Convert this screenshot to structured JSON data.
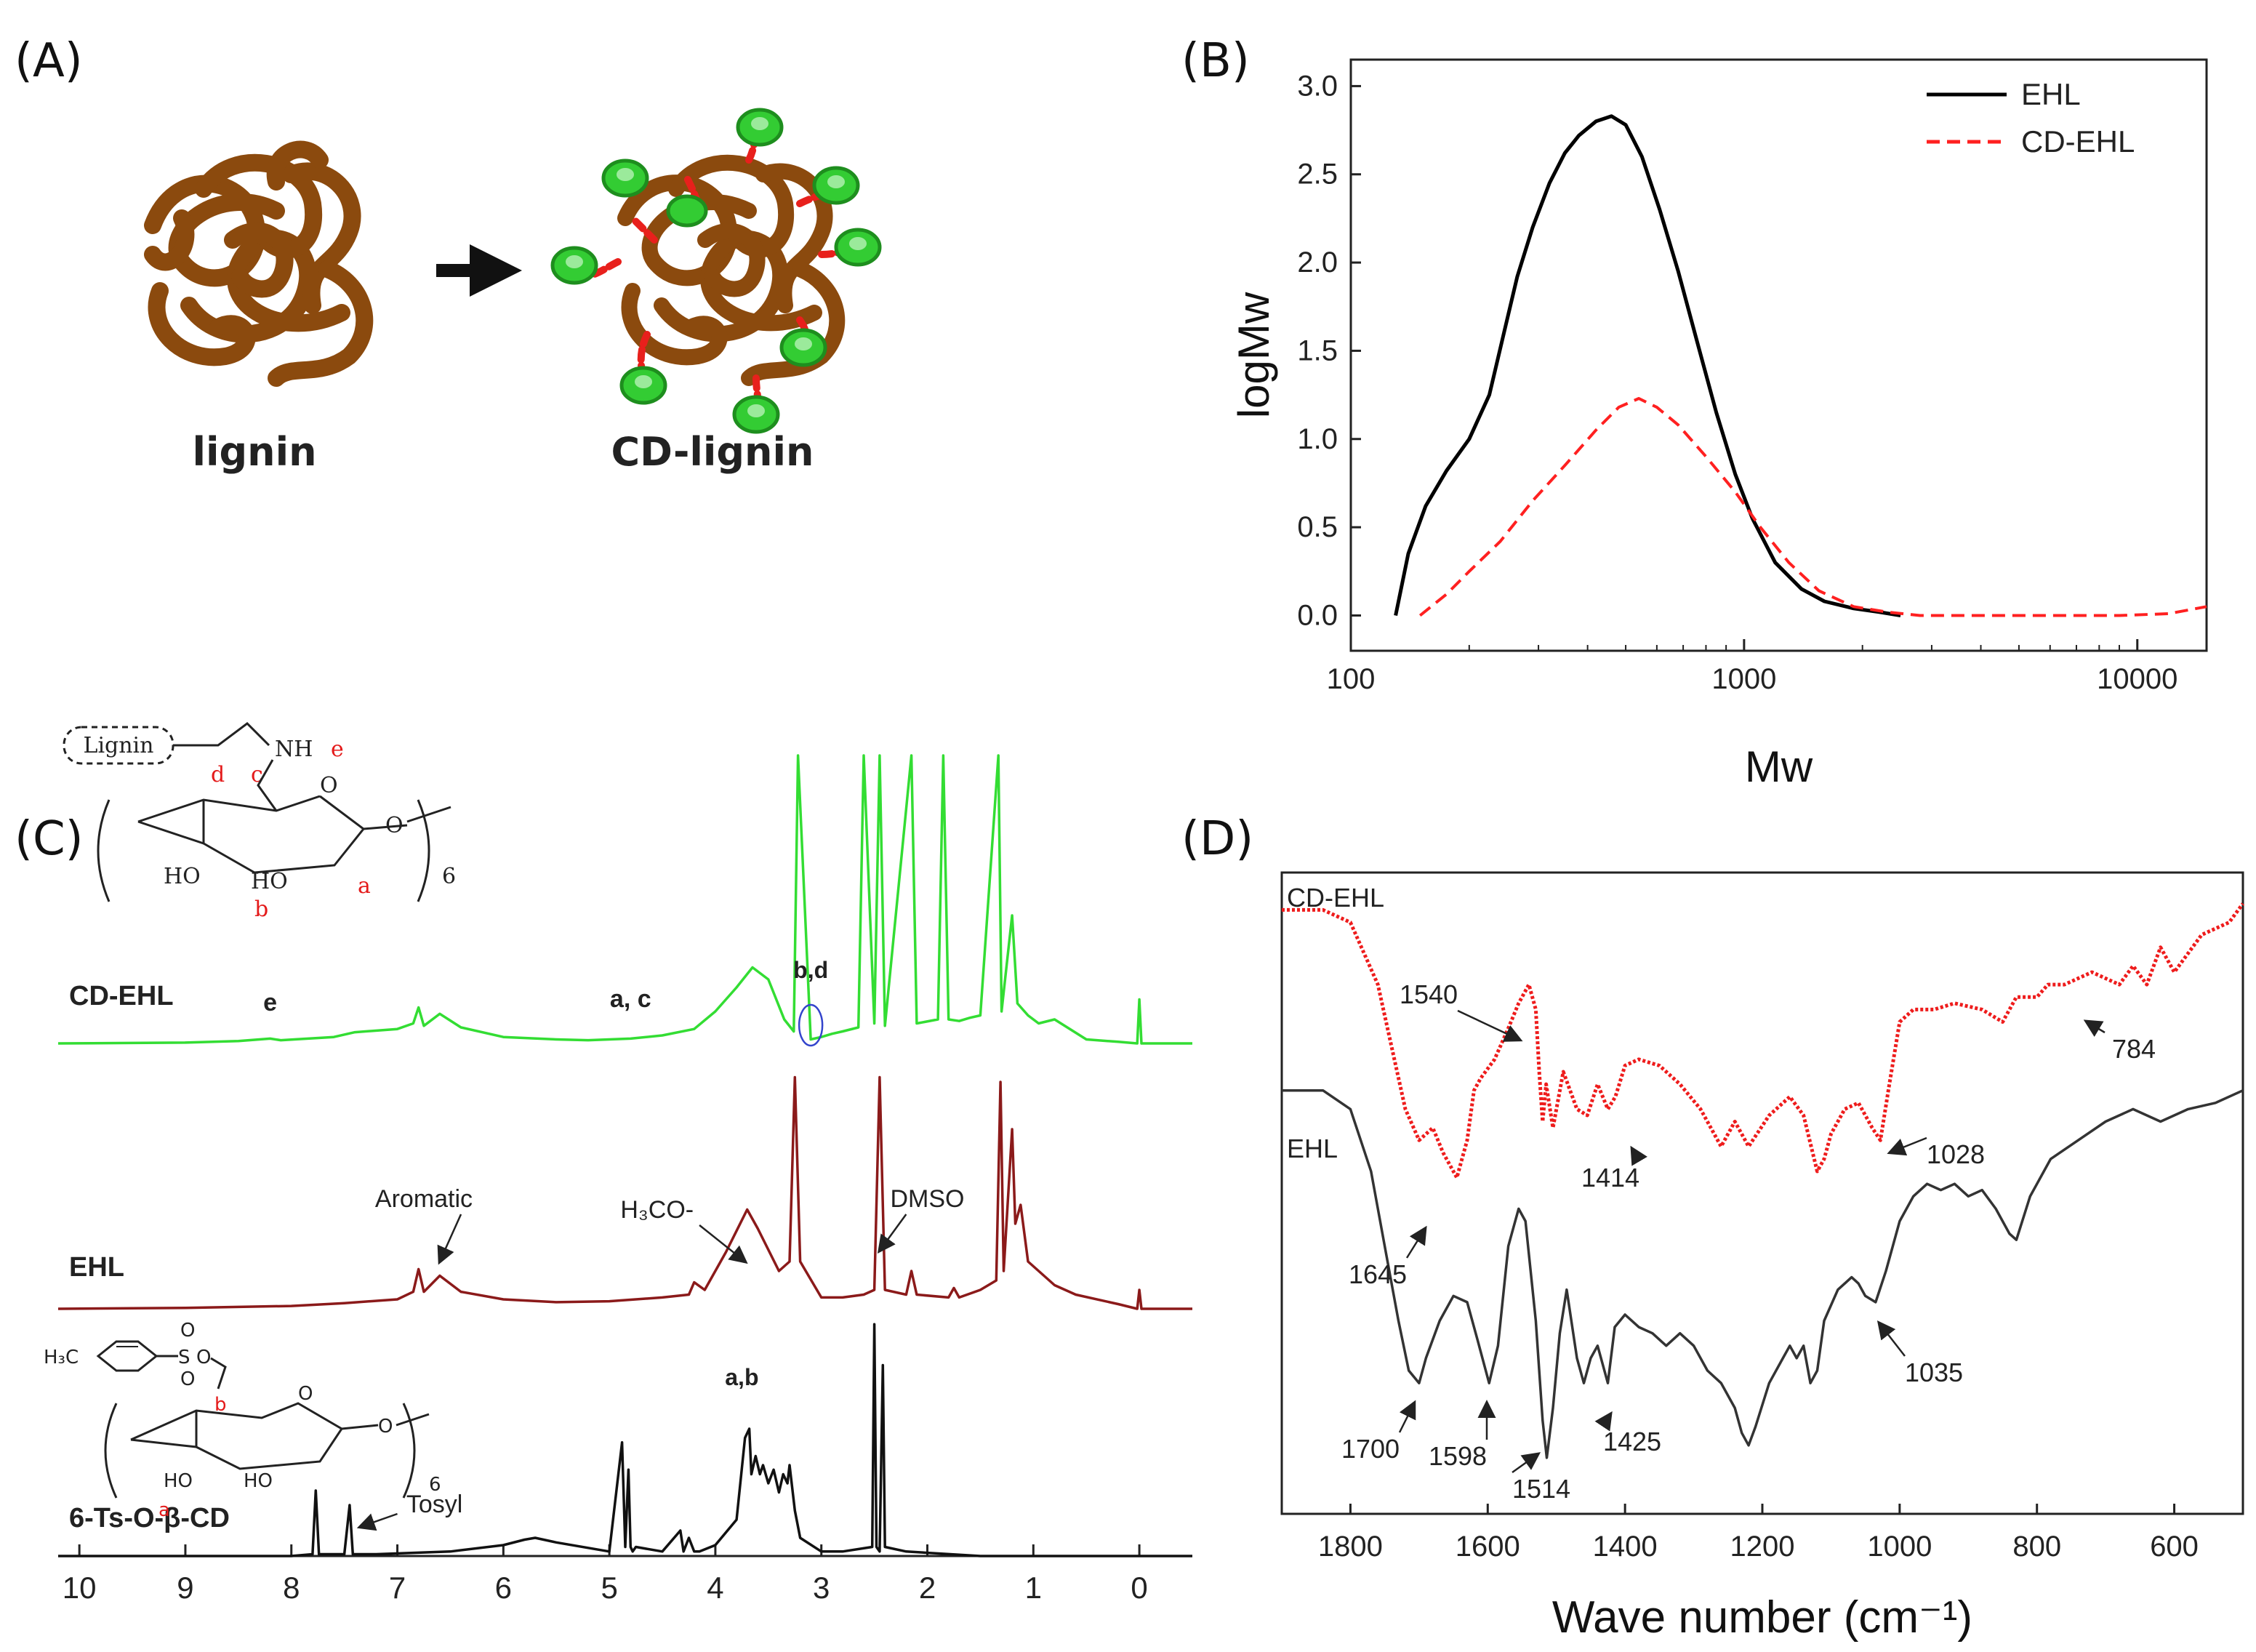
{
  "panel_labels": {
    "a": "(A)",
    "b": "(B)",
    "c": "(C)",
    "d": "(D)"
  },
  "schematic": {
    "left_label": "lignin",
    "right_label": "CD-lignin",
    "lignin_color": "#8B4A0E",
    "cd_color": "#33CC33",
    "linker_color": "#E8201C"
  },
  "chart_data": [
    {
      "id": "B",
      "type": "line",
      "xscale": "log",
      "xlabel": "Mw",
      "ylabel": "logMw",
      "xlim": [
        100,
        15000
      ],
      "ylim": [
        -0.2,
        3.15
      ],
      "xticks": [
        100,
        1000,
        10000
      ],
      "xtick_labels": [
        "100",
        "1000",
        "10000"
      ],
      "yticks": [
        0.0,
        0.5,
        1.0,
        1.5,
        2.0,
        2.5,
        3.0
      ],
      "ytick_labels": [
        "0.0",
        "0.5",
        "1.0",
        "1.5",
        "2.0",
        "2.5",
        "3.0"
      ],
      "legend_position": "top-right",
      "series": [
        {
          "name": "EHL",
          "style": "solid",
          "color": "#000000",
          "x": [
            130,
            140,
            155,
            175,
            200,
            225,
            245,
            265,
            290,
            320,
            350,
            380,
            420,
            460,
            500,
            550,
            610,
            680,
            760,
            850,
            950,
            1050,
            1200,
            1400,
            1600,
            1900,
            2200,
            2500
          ],
          "y": [
            0.0,
            0.35,
            0.62,
            0.82,
            1.0,
            1.25,
            1.6,
            1.92,
            2.2,
            2.45,
            2.62,
            2.72,
            2.8,
            2.83,
            2.78,
            2.6,
            2.3,
            1.95,
            1.55,
            1.15,
            0.8,
            0.55,
            0.3,
            0.15,
            0.08,
            0.04,
            0.02,
            0.0
          ]
        },
        {
          "name": "CD-EHL",
          "style": "dashed",
          "color": "#FF2020",
          "x": [
            150,
            175,
            200,
            240,
            290,
            350,
            420,
            480,
            540,
            600,
            680,
            800,
            950,
            1100,
            1300,
            1550,
            1900,
            2300,
            2800,
            4000,
            6000,
            9000,
            12000,
            15000
          ],
          "y": [
            0.0,
            0.12,
            0.25,
            0.42,
            0.65,
            0.85,
            1.05,
            1.18,
            1.23,
            1.18,
            1.08,
            0.9,
            0.7,
            0.5,
            0.3,
            0.14,
            0.05,
            0.02,
            0.0,
            0.0,
            0.0,
            0.0,
            0.01,
            0.05
          ]
        }
      ]
    },
    {
      "id": "C",
      "type": "line",
      "xlabel": "",
      "ylabel": "",
      "xlim": [
        10.2,
        -0.5
      ],
      "xticks": [
        10,
        9,
        8,
        7,
        6,
        5,
        4,
        3,
        2,
        1,
        0
      ],
      "xtick_labels": [
        "10",
        "9",
        "8",
        "7",
        "6",
        "5",
        "4",
        "3",
        "2",
        "1",
        "0"
      ],
      "series": [
        {
          "name": "CD-EHL",
          "color": "#33DD33",
          "x": [
            10.2,
            9.0,
            8.5,
            8.2,
            8.1,
            7.6,
            7.4,
            7.0,
            6.85,
            6.8,
            6.75,
            6.6,
            6.4,
            6.0,
            5.5,
            5.2,
            4.8,
            4.5,
            4.2,
            4.0,
            3.8,
            3.65,
            3.5,
            3.35,
            3.26,
            3.22,
            3.1,
            3.0,
            2.9,
            2.8,
            2.65,
            2.6,
            2.5,
            2.45,
            2.4,
            2.15,
            2.1,
            1.9,
            1.85,
            1.8,
            1.7,
            1.6,
            1.5,
            1.33,
            1.3,
            1.2,
            1.15,
            1.05,
            0.95,
            0.8,
            0.5,
            0.2,
            0.02,
            0.0,
            -0.02,
            -0.5
          ],
          "y": [
            0.0,
            0.01,
            0.03,
            0.06,
            0.04,
            0.08,
            0.14,
            0.18,
            0.25,
            0.45,
            0.22,
            0.37,
            0.2,
            0.08,
            0.05,
            0.04,
            0.06,
            0.1,
            0.18,
            0.4,
            0.7,
            0.95,
            0.8,
            0.3,
            0.15,
            3.6,
            0.05,
            0.08,
            0.12,
            0.15,
            0.2,
            3.6,
            0.25,
            3.6,
            0.22,
            3.6,
            0.25,
            0.3,
            3.6,
            0.3,
            0.28,
            0.32,
            0.35,
            3.6,
            0.4,
            1.6,
            0.5,
            0.35,
            0.25,
            0.3,
            0.05,
            0.02,
            0.0,
            0.55,
            0.0,
            0.0
          ]
        },
        {
          "name": "EHL",
          "color": "#8B1A1A",
          "x": [
            10.2,
            9.0,
            8.0,
            7.5,
            7.0,
            6.85,
            6.8,
            6.75,
            6.6,
            6.4,
            6.0,
            5.5,
            5.0,
            4.5,
            4.25,
            4.2,
            4.1,
            3.9,
            3.7,
            3.6,
            3.4,
            3.3,
            3.25,
            3.2,
            3.0,
            2.8,
            2.6,
            2.5,
            2.45,
            2.4,
            2.2,
            2.15,
            2.1,
            1.8,
            1.75,
            1.7,
            1.5,
            1.35,
            1.31,
            1.28,
            1.2,
            1.17,
            1.12,
            1.05,
            0.8,
            0.6,
            0.2,
            0.02,
            0.0,
            -0.02,
            -0.5
          ],
          "y": [
            0.0,
            0.01,
            0.03,
            0.06,
            0.1,
            0.18,
            0.42,
            0.18,
            0.35,
            0.18,
            0.1,
            0.07,
            0.08,
            0.12,
            0.15,
            0.28,
            0.2,
            0.6,
            1.05,
            0.85,
            0.4,
            0.5,
            2.45,
            0.5,
            0.12,
            0.12,
            0.15,
            0.2,
            2.45,
            0.2,
            0.15,
            0.4,
            0.15,
            0.12,
            0.22,
            0.12,
            0.2,
            0.3,
            2.4,
            0.4,
            1.9,
            0.9,
            1.1,
            0.5,
            0.25,
            0.15,
            0.05,
            0.0,
            0.2,
            0.0,
            0.0
          ]
        },
        {
          "name": "6-Ts-O-β-CD",
          "color": "#111111",
          "x": [
            10.2,
            9.0,
            8.0,
            7.8,
            7.77,
            7.74,
            7.5,
            7.45,
            7.42,
            7.2,
            6.5,
            6.0,
            5.8,
            5.7,
            5.5,
            5.0,
            4.88,
            4.85,
            4.82,
            4.8,
            4.78,
            4.75,
            4.5,
            4.33,
            4.3,
            4.25,
            4.2,
            4.15,
            4.0,
            3.8,
            3.72,
            3.68,
            3.66,
            3.62,
            3.58,
            3.55,
            3.5,
            3.45,
            3.4,
            3.36,
            3.32,
            3.3,
            3.25,
            3.2,
            3.0,
            2.8,
            2.52,
            2.5,
            2.48,
            2.45,
            2.42,
            2.4,
            2.2,
            1.5,
            0.5,
            -0.5
          ],
          "y": [
            0.0,
            0.0,
            0.0,
            0.02,
            0.72,
            0.02,
            0.02,
            0.56,
            0.02,
            0.02,
            0.05,
            0.12,
            0.18,
            0.2,
            0.15,
            0.05,
            1.25,
            0.1,
            0.95,
            0.1,
            0.05,
            0.1,
            0.05,
            0.28,
            0.05,
            0.2,
            0.05,
            0.05,
            0.12,
            0.4,
            1.3,
            1.4,
            0.9,
            1.1,
            0.9,
            1.0,
            0.8,
            0.95,
            0.7,
            0.9,
            0.8,
            1.0,
            0.5,
            0.2,
            0.05,
            0.05,
            0.1,
            2.55,
            0.1,
            0.05,
            2.1,
            0.1,
            0.05,
            0.0,
            0.0,
            0.0
          ]
        }
      ],
      "spectrum_labels": [
        "CD-EHL",
        "EHL",
        "6-Ts-O-β-CD"
      ],
      "annotations": {
        "e": "e",
        "ac": "a, c",
        "bd": "b,d",
        "aromatic": "Aromatic",
        "h3co": "H₃CO-",
        "dmso": "DMSO",
        "ab": "a,b",
        "tosyl": "Tosyl"
      },
      "structure_top": {
        "lignin": "Lignin",
        "nh": "NH",
        "e": "e",
        "d": "d",
        "c": "c",
        "b": "b",
        "a": "a",
        "ho1": "HO",
        "ho2": "HO",
        "o_ring": "O",
        "o_link": "O",
        "n": "6"
      },
      "structure_bottom": {
        "h3c": "H₃C",
        "s": "S",
        "o1": "O",
        "o2": "O",
        "o3": "O",
        "o_ring": "O",
        "o_link": "O",
        "ho1": "HO",
        "ho2": "HO",
        "b": "b",
        "a": "a",
        "n": "6"
      }
    },
    {
      "id": "D",
      "type": "line",
      "xlabel": "Wave number (cm⁻¹)",
      "ylabel": "",
      "xlim": [
        1900,
        500
      ],
      "xticks": [
        1800,
        1600,
        1400,
        1200,
        1000,
        800,
        600
      ],
      "xtick_labels": [
        "1800",
        "1600",
        "1400",
        "1200",
        "1000",
        "800",
        "600"
      ],
      "series": [
        {
          "name": "CD-EHL",
          "style": "dotted",
          "color": "#EE1C1C",
          "x": [
            1900,
            1840,
            1800,
            1760,
            1740,
            1720,
            1700,
            1680,
            1665,
            1645,
            1630,
            1620,
            1610,
            1590,
            1570,
            1555,
            1540,
            1530,
            1525,
            1520,
            1515,
            1505,
            1490,
            1470,
            1455,
            1440,
            1425,
            1414,
            1400,
            1380,
            1350,
            1320,
            1290,
            1260,
            1240,
            1220,
            1190,
            1160,
            1140,
            1120,
            1110,
            1100,
            1080,
            1060,
            1040,
            1028,
            1015,
            1000,
            980,
            950,
            920,
            880,
            850,
            830,
            800,
            784,
            760,
            720,
            680,
            660,
            640,
            620,
            600,
            560,
            520,
            500
          ],
          "y": [
            12.2,
            12.2,
            12.0,
            11.0,
            10.0,
            9.0,
            8.5,
            8.7,
            8.3,
            7.9,
            8.5,
            9.3,
            9.5,
            9.8,
            10.3,
            10.7,
            11.0,
            10.6,
            9.6,
            8.8,
            9.4,
            8.7,
            9.6,
            9.0,
            8.9,
            9.4,
            9.0,
            9.2,
            9.7,
            9.8,
            9.7,
            9.4,
            9.0,
            8.4,
            8.8,
            8.4,
            8.9,
            9.2,
            8.9,
            8.0,
            8.2,
            8.6,
            9.0,
            9.1,
            8.7,
            8.5,
            9.4,
            10.4,
            10.6,
            10.6,
            10.7,
            10.6,
            10.4,
            10.8,
            10.8,
            11.0,
            11.0,
            11.2,
            11.0,
            11.3,
            11.0,
            11.6,
            11.2,
            11.8,
            12.0,
            12.3
          ]
        },
        {
          "name": "EHL",
          "style": "solid",
          "color": "#333333",
          "x": [
            1900,
            1840,
            1800,
            1770,
            1750,
            1730,
            1715,
            1700,
            1690,
            1670,
            1650,
            1630,
            1615,
            1598,
            1585,
            1570,
            1555,
            1545,
            1530,
            1520,
            1514,
            1505,
            1495,
            1485,
            1470,
            1460,
            1450,
            1440,
            1425,
            1415,
            1400,
            1380,
            1360,
            1340,
            1320,
            1300,
            1280,
            1260,
            1240,
            1230,
            1220,
            1210,
            1190,
            1170,
            1160,
            1150,
            1140,
            1130,
            1120,
            1110,
            1090,
            1070,
            1060,
            1050,
            1035,
            1020,
            1000,
            980,
            960,
            940,
            920,
            900,
            880,
            860,
            840,
            830,
            810,
            780,
            740,
            700,
            660,
            620,
            580,
            540,
            500
          ],
          "y": [
            9.3,
            9.3,
            9.0,
            8.0,
            6.8,
            5.6,
            4.8,
            4.6,
            5.0,
            5.6,
            6.0,
            5.9,
            5.3,
            4.6,
            5.2,
            6.8,
            7.4,
            7.2,
            5.6,
            4.0,
            3.4,
            4.2,
            5.4,
            6.1,
            5.0,
            4.6,
            5.0,
            5.2,
            4.6,
            5.5,
            5.7,
            5.5,
            5.4,
            5.2,
            5.4,
            5.2,
            4.8,
            4.6,
            4.2,
            3.8,
            3.6,
            3.9,
            4.6,
            5.0,
            5.2,
            5.0,
            5.2,
            4.6,
            4.8,
            5.6,
            6.1,
            6.3,
            6.2,
            6.0,
            5.9,
            6.4,
            7.2,
            7.6,
            7.8,
            7.7,
            7.8,
            7.6,
            7.7,
            7.4,
            7.0,
            6.9,
            7.6,
            8.2,
            8.5,
            8.8,
            9.0,
            8.8,
            9.0,
            9.1,
            9.3
          ]
        }
      ],
      "labels": {
        "cd_ehl": "CD-EHL",
        "ehl": "EHL",
        "p1540": "1540",
        "p1645": "1645",
        "p1414": "1414",
        "p1028": "1028",
        "p784": "784",
        "p1700": "1700",
        "p1598": "1598",
        "p1514": "1514",
        "p1425": "1425",
        "p1035": "1035"
      }
    }
  ]
}
